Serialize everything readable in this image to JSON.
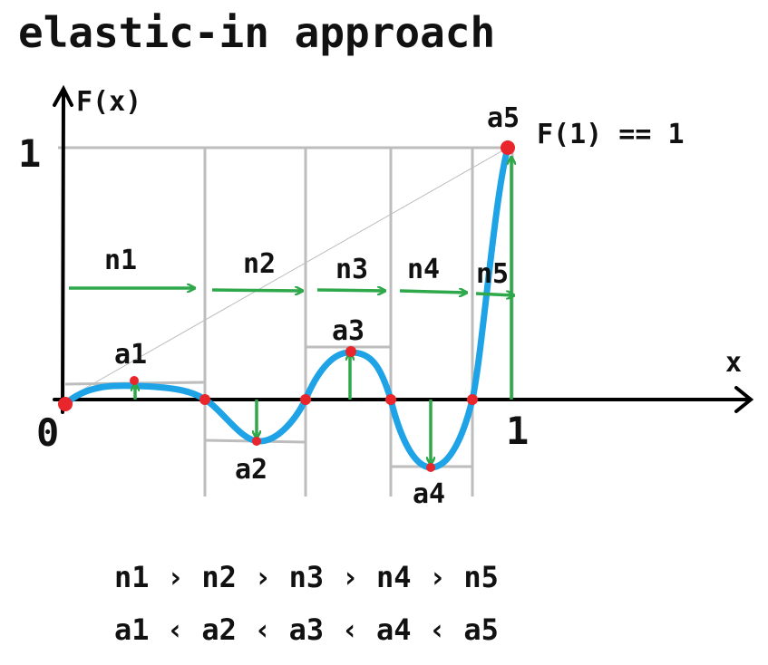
{
  "title": "elastic-in approach",
  "axes": {
    "y_label": "F(x)",
    "x_label": "x",
    "origin_label": "0",
    "y_one_label": "1",
    "x_one_label": "1"
  },
  "annotation": "F(1) == 1",
  "segments": [
    {
      "name": "n1"
    },
    {
      "name": "n2"
    },
    {
      "name": "n3"
    },
    {
      "name": "n4"
    },
    {
      "name": "n5"
    }
  ],
  "peaks": [
    {
      "name": "a1"
    },
    {
      "name": "a2"
    },
    {
      "name": "a3"
    },
    {
      "name": "a4"
    },
    {
      "name": "a5"
    }
  ],
  "relations": {
    "n_chain": "n1 › n2 › n3 › n4 › n5",
    "a_chain": "a1 ‹ a2 ‹ a3 ‹ a4 ‹ a5"
  },
  "colors": {
    "curve": "#1ea3e6",
    "arrow": "#2ea84a",
    "point": "#e8262b",
    "guide": "#bdbdbd",
    "axis": "#000000"
  }
}
